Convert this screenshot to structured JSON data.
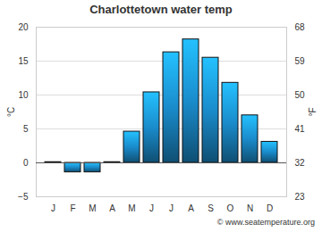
{
  "chart_data": {
    "type": "bar",
    "title": "Charlottetown water temp",
    "categories": [
      "J",
      "F",
      "M",
      "A",
      "M",
      "J",
      "J",
      "A",
      "S",
      "O",
      "N",
      "D"
    ],
    "values": [
      0.1,
      -1.4,
      -1.4,
      0.1,
      4.6,
      10.4,
      16.3,
      18.2,
      15.5,
      11.8,
      7.0,
      3.1
    ],
    "color": "#1a8ccc",
    "ylabel": "°C",
    "ylim": [
      -5,
      20
    ],
    "yticks": [
      -5,
      0,
      5,
      10,
      15,
      20
    ],
    "y2label": "°F",
    "y2lim": [
      23,
      68
    ],
    "y2ticks": [
      23,
      32,
      41,
      50,
      59,
      68
    ],
    "grid": true,
    "annotation": "© www.seatemperature.org"
  }
}
